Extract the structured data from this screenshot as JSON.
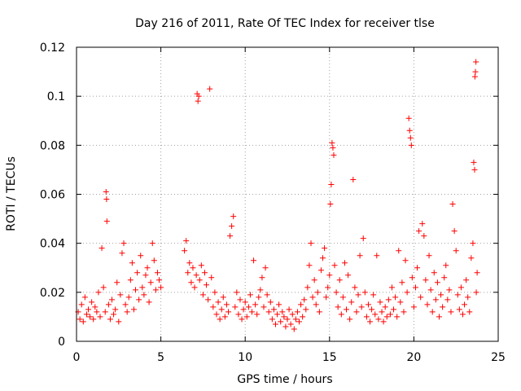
{
  "chart_data": {
    "type": "scatter",
    "title": "Day 216 of 2011, Rate Of TEC Index for receiver tlse",
    "xlabel": "GPS time / hours",
    "ylabel": "ROTI / TECUs",
    "xlim": [
      0,
      25
    ],
    "ylim": [
      0,
      0.12
    ],
    "xticks": [
      0,
      5,
      10,
      15,
      20,
      25
    ],
    "xtick_labels": [
      "0",
      "5",
      "10",
      "15",
      "20",
      "25"
    ],
    "yticks": [
      0,
      0.02,
      0.04,
      0.06,
      0.08,
      0.1,
      0.12
    ],
    "ytick_labels": [
      "0",
      "0.02",
      "0.04",
      "0.06",
      "0.08",
      "0.1",
      "0.12"
    ],
    "grid": true,
    "marker": "+",
    "color": "#ff0000",
    "series": [
      {
        "name": "ROTI",
        "points": [
          [
            0.1,
            0.012
          ],
          [
            0.2,
            0.009
          ],
          [
            0.3,
            0.015
          ],
          [
            0.4,
            0.008
          ],
          [
            0.5,
            0.018
          ],
          [
            0.6,
            0.011
          ],
          [
            0.7,
            0.013
          ],
          [
            0.8,
            0.01
          ],
          [
            0.9,
            0.016
          ],
          [
            1.0,
            0.009
          ],
          [
            1.1,
            0.014
          ],
          [
            1.2,
            0.012
          ],
          [
            1.3,
            0.02
          ],
          [
            1.4,
            0.01
          ],
          [
            1.5,
            0.038
          ],
          [
            1.6,
            0.022
          ],
          [
            1.7,
            0.012
          ],
          [
            1.75,
            0.061
          ],
          [
            1.78,
            0.058
          ],
          [
            1.8,
            0.049
          ],
          [
            1.9,
            0.015
          ],
          [
            2.0,
            0.009
          ],
          [
            2.1,
            0.017
          ],
          [
            2.2,
            0.011
          ],
          [
            2.3,
            0.013
          ],
          [
            2.4,
            0.024
          ],
          [
            2.5,
            0.008
          ],
          [
            2.6,
            0.019
          ],
          [
            2.7,
            0.036
          ],
          [
            2.8,
            0.04
          ],
          [
            2.9,
            0.015
          ],
          [
            3.0,
            0.012
          ],
          [
            3.1,
            0.018
          ],
          [
            3.2,
            0.025
          ],
          [
            3.3,
            0.032
          ],
          [
            3.4,
            0.013
          ],
          [
            3.5,
            0.021
          ],
          [
            3.6,
            0.028
          ],
          [
            3.7,
            0.017
          ],
          [
            3.8,
            0.035
          ],
          [
            3.9,
            0.022
          ],
          [
            4.0,
            0.019
          ],
          [
            4.1,
            0.027
          ],
          [
            4.2,
            0.03
          ],
          [
            4.3,
            0.016
          ],
          [
            4.4,
            0.024
          ],
          [
            4.5,
            0.04
          ],
          [
            4.6,
            0.033
          ],
          [
            4.7,
            0.021
          ],
          [
            4.8,
            0.028
          ],
          [
            4.9,
            0.025
          ],
          [
            5.0,
            0.022
          ],
          [
            6.4,
            0.037
          ],
          [
            6.5,
            0.041
          ],
          [
            6.6,
            0.028
          ],
          [
            6.7,
            0.032
          ],
          [
            6.8,
            0.024
          ],
          [
            6.9,
            0.03
          ],
          [
            7.0,
            0.022
          ],
          [
            7.1,
            0.027
          ],
          [
            7.15,
            0.101
          ],
          [
            7.2,
            0.098
          ],
          [
            7.25,
            0.1
          ],
          [
            7.3,
            0.025
          ],
          [
            7.4,
            0.031
          ],
          [
            7.5,
            0.019
          ],
          [
            7.6,
            0.028
          ],
          [
            7.7,
            0.023
          ],
          [
            7.8,
            0.017
          ],
          [
            7.9,
            0.103
          ],
          [
            8.0,
            0.026
          ],
          [
            8.1,
            0.014
          ],
          [
            8.2,
            0.02
          ],
          [
            8.3,
            0.011
          ],
          [
            8.4,
            0.016
          ],
          [
            8.5,
            0.009
          ],
          [
            8.6,
            0.013
          ],
          [
            8.7,
            0.018
          ],
          [
            8.8,
            0.01
          ],
          [
            8.9,
            0.015
          ],
          [
            9.0,
            0.012
          ],
          [
            9.1,
            0.043
          ],
          [
            9.2,
            0.047
          ],
          [
            9.3,
            0.051
          ],
          [
            9.4,
            0.014
          ],
          [
            9.5,
            0.02
          ],
          [
            9.6,
            0.011
          ],
          [
            9.7,
            0.017
          ],
          [
            9.8,
            0.009
          ],
          [
            9.9,
            0.013
          ],
          [
            10.0,
            0.016
          ],
          [
            10.1,
            0.01
          ],
          [
            10.2,
            0.014
          ],
          [
            10.3,
            0.019
          ],
          [
            10.4,
            0.012
          ],
          [
            10.5,
            0.033
          ],
          [
            10.6,
            0.015
          ],
          [
            10.7,
            0.011
          ],
          [
            10.8,
            0.018
          ],
          [
            10.9,
            0.021
          ],
          [
            11.0,
            0.026
          ],
          [
            11.1,
            0.014
          ],
          [
            11.2,
            0.03
          ],
          [
            11.3,
            0.019
          ],
          [
            11.4,
            0.012
          ],
          [
            11.5,
            0.016
          ],
          [
            11.6,
            0.009
          ],
          [
            11.7,
            0.013
          ],
          [
            11.8,
            0.007
          ],
          [
            11.9,
            0.011
          ],
          [
            12.0,
            0.015
          ],
          [
            12.1,
            0.008
          ],
          [
            12.2,
            0.012
          ],
          [
            12.3,
            0.01
          ],
          [
            12.4,
            0.006
          ],
          [
            12.5,
            0.009
          ],
          [
            12.6,
            0.013
          ],
          [
            12.7,
            0.007
          ],
          [
            12.8,
            0.011
          ],
          [
            12.9,
            0.005
          ],
          [
            13.0,
            0.009
          ],
          [
            13.1,
            0.012
          ],
          [
            13.2,
            0.008
          ],
          [
            13.3,
            0.015
          ],
          [
            13.4,
            0.01
          ],
          [
            13.5,
            0.017
          ],
          [
            13.6,
            0.013
          ],
          [
            13.7,
            0.022
          ],
          [
            13.8,
            0.031
          ],
          [
            13.9,
            0.04
          ],
          [
            14.0,
            0.018
          ],
          [
            14.1,
            0.025
          ],
          [
            14.2,
            0.015
          ],
          [
            14.3,
            0.02
          ],
          [
            14.4,
            0.012
          ],
          [
            14.5,
            0.029
          ],
          [
            14.6,
            0.034
          ],
          [
            14.7,
            0.038
          ],
          [
            14.8,
            0.018
          ],
          [
            14.9,
            0.022
          ],
          [
            15.0,
            0.027
          ],
          [
            15.05,
            0.056
          ],
          [
            15.1,
            0.064
          ],
          [
            15.15,
            0.081
          ],
          [
            15.2,
            0.079
          ],
          [
            15.25,
            0.076
          ],
          [
            15.3,
            0.031
          ],
          [
            15.4,
            0.02
          ],
          [
            15.5,
            0.014
          ],
          [
            15.6,
            0.025
          ],
          [
            15.7,
            0.011
          ],
          [
            15.8,
            0.018
          ],
          [
            15.9,
            0.032
          ],
          [
            16.0,
            0.013
          ],
          [
            16.1,
            0.027
          ],
          [
            16.2,
            0.009
          ],
          [
            16.3,
            0.016
          ],
          [
            16.4,
            0.066
          ],
          [
            16.5,
            0.022
          ],
          [
            16.6,
            0.012
          ],
          [
            16.7,
            0.019
          ],
          [
            16.8,
            0.035
          ],
          [
            16.9,
            0.014
          ],
          [
            17.0,
            0.042
          ],
          [
            17.1,
            0.02
          ],
          [
            17.2,
            0.01
          ],
          [
            17.3,
            0.015
          ],
          [
            17.4,
            0.008
          ],
          [
            17.5,
            0.013
          ],
          [
            17.6,
            0.019
          ],
          [
            17.7,
            0.011
          ],
          [
            17.8,
            0.035
          ],
          [
            17.9,
            0.009
          ],
          [
            18.0,
            0.016
          ],
          [
            18.1,
            0.012
          ],
          [
            18.2,
            0.008
          ],
          [
            18.3,
            0.014
          ],
          [
            18.4,
            0.01
          ],
          [
            18.5,
            0.017
          ],
          [
            18.6,
            0.011
          ],
          [
            18.7,
            0.022
          ],
          [
            18.8,
            0.013
          ],
          [
            18.9,
            0.018
          ],
          [
            19.0,
            0.01
          ],
          [
            19.1,
            0.037
          ],
          [
            19.2,
            0.016
          ],
          [
            19.3,
            0.024
          ],
          [
            19.4,
            0.012
          ],
          [
            19.5,
            0.033
          ],
          [
            19.6,
            0.02
          ],
          [
            19.7,
            0.091
          ],
          [
            19.75,
            0.086
          ],
          [
            19.8,
            0.083
          ],
          [
            19.85,
            0.08
          ],
          [
            19.9,
            0.026
          ],
          [
            20.0,
            0.014
          ],
          [
            20.1,
            0.022
          ],
          [
            20.2,
            0.03
          ],
          [
            20.3,
            0.045
          ],
          [
            20.4,
            0.018
          ],
          [
            20.5,
            0.048
          ],
          [
            20.6,
            0.043
          ],
          [
            20.7,
            0.025
          ],
          [
            20.8,
            0.015
          ],
          [
            20.9,
            0.035
          ],
          [
            21.0,
            0.021
          ],
          [
            21.1,
            0.012
          ],
          [
            21.2,
            0.028
          ],
          [
            21.3,
            0.017
          ],
          [
            21.4,
            0.024
          ],
          [
            21.5,
            0.01
          ],
          [
            21.6,
            0.019
          ],
          [
            21.7,
            0.014
          ],
          [
            21.8,
            0.026
          ],
          [
            21.9,
            0.031
          ],
          [
            22.0,
            0.017
          ],
          [
            22.1,
            0.021
          ],
          [
            22.2,
            0.012
          ],
          [
            22.3,
            0.056
          ],
          [
            22.4,
            0.045
          ],
          [
            22.5,
            0.037
          ],
          [
            22.6,
            0.019
          ],
          [
            22.7,
            0.013
          ],
          [
            22.8,
            0.022
          ],
          [
            22.9,
            0.011
          ],
          [
            23.0,
            0.015
          ],
          [
            23.1,
            0.025
          ],
          [
            23.2,
            0.018
          ],
          [
            23.3,
            0.012
          ],
          [
            23.4,
            0.034
          ],
          [
            23.5,
            0.04
          ],
          [
            23.55,
            0.073
          ],
          [
            23.6,
            0.07
          ],
          [
            23.62,
            0.108
          ],
          [
            23.65,
            0.11
          ],
          [
            23.68,
            0.114
          ],
          [
            23.7,
            0.02
          ],
          [
            23.75,
            0.028
          ]
        ]
      }
    ]
  }
}
